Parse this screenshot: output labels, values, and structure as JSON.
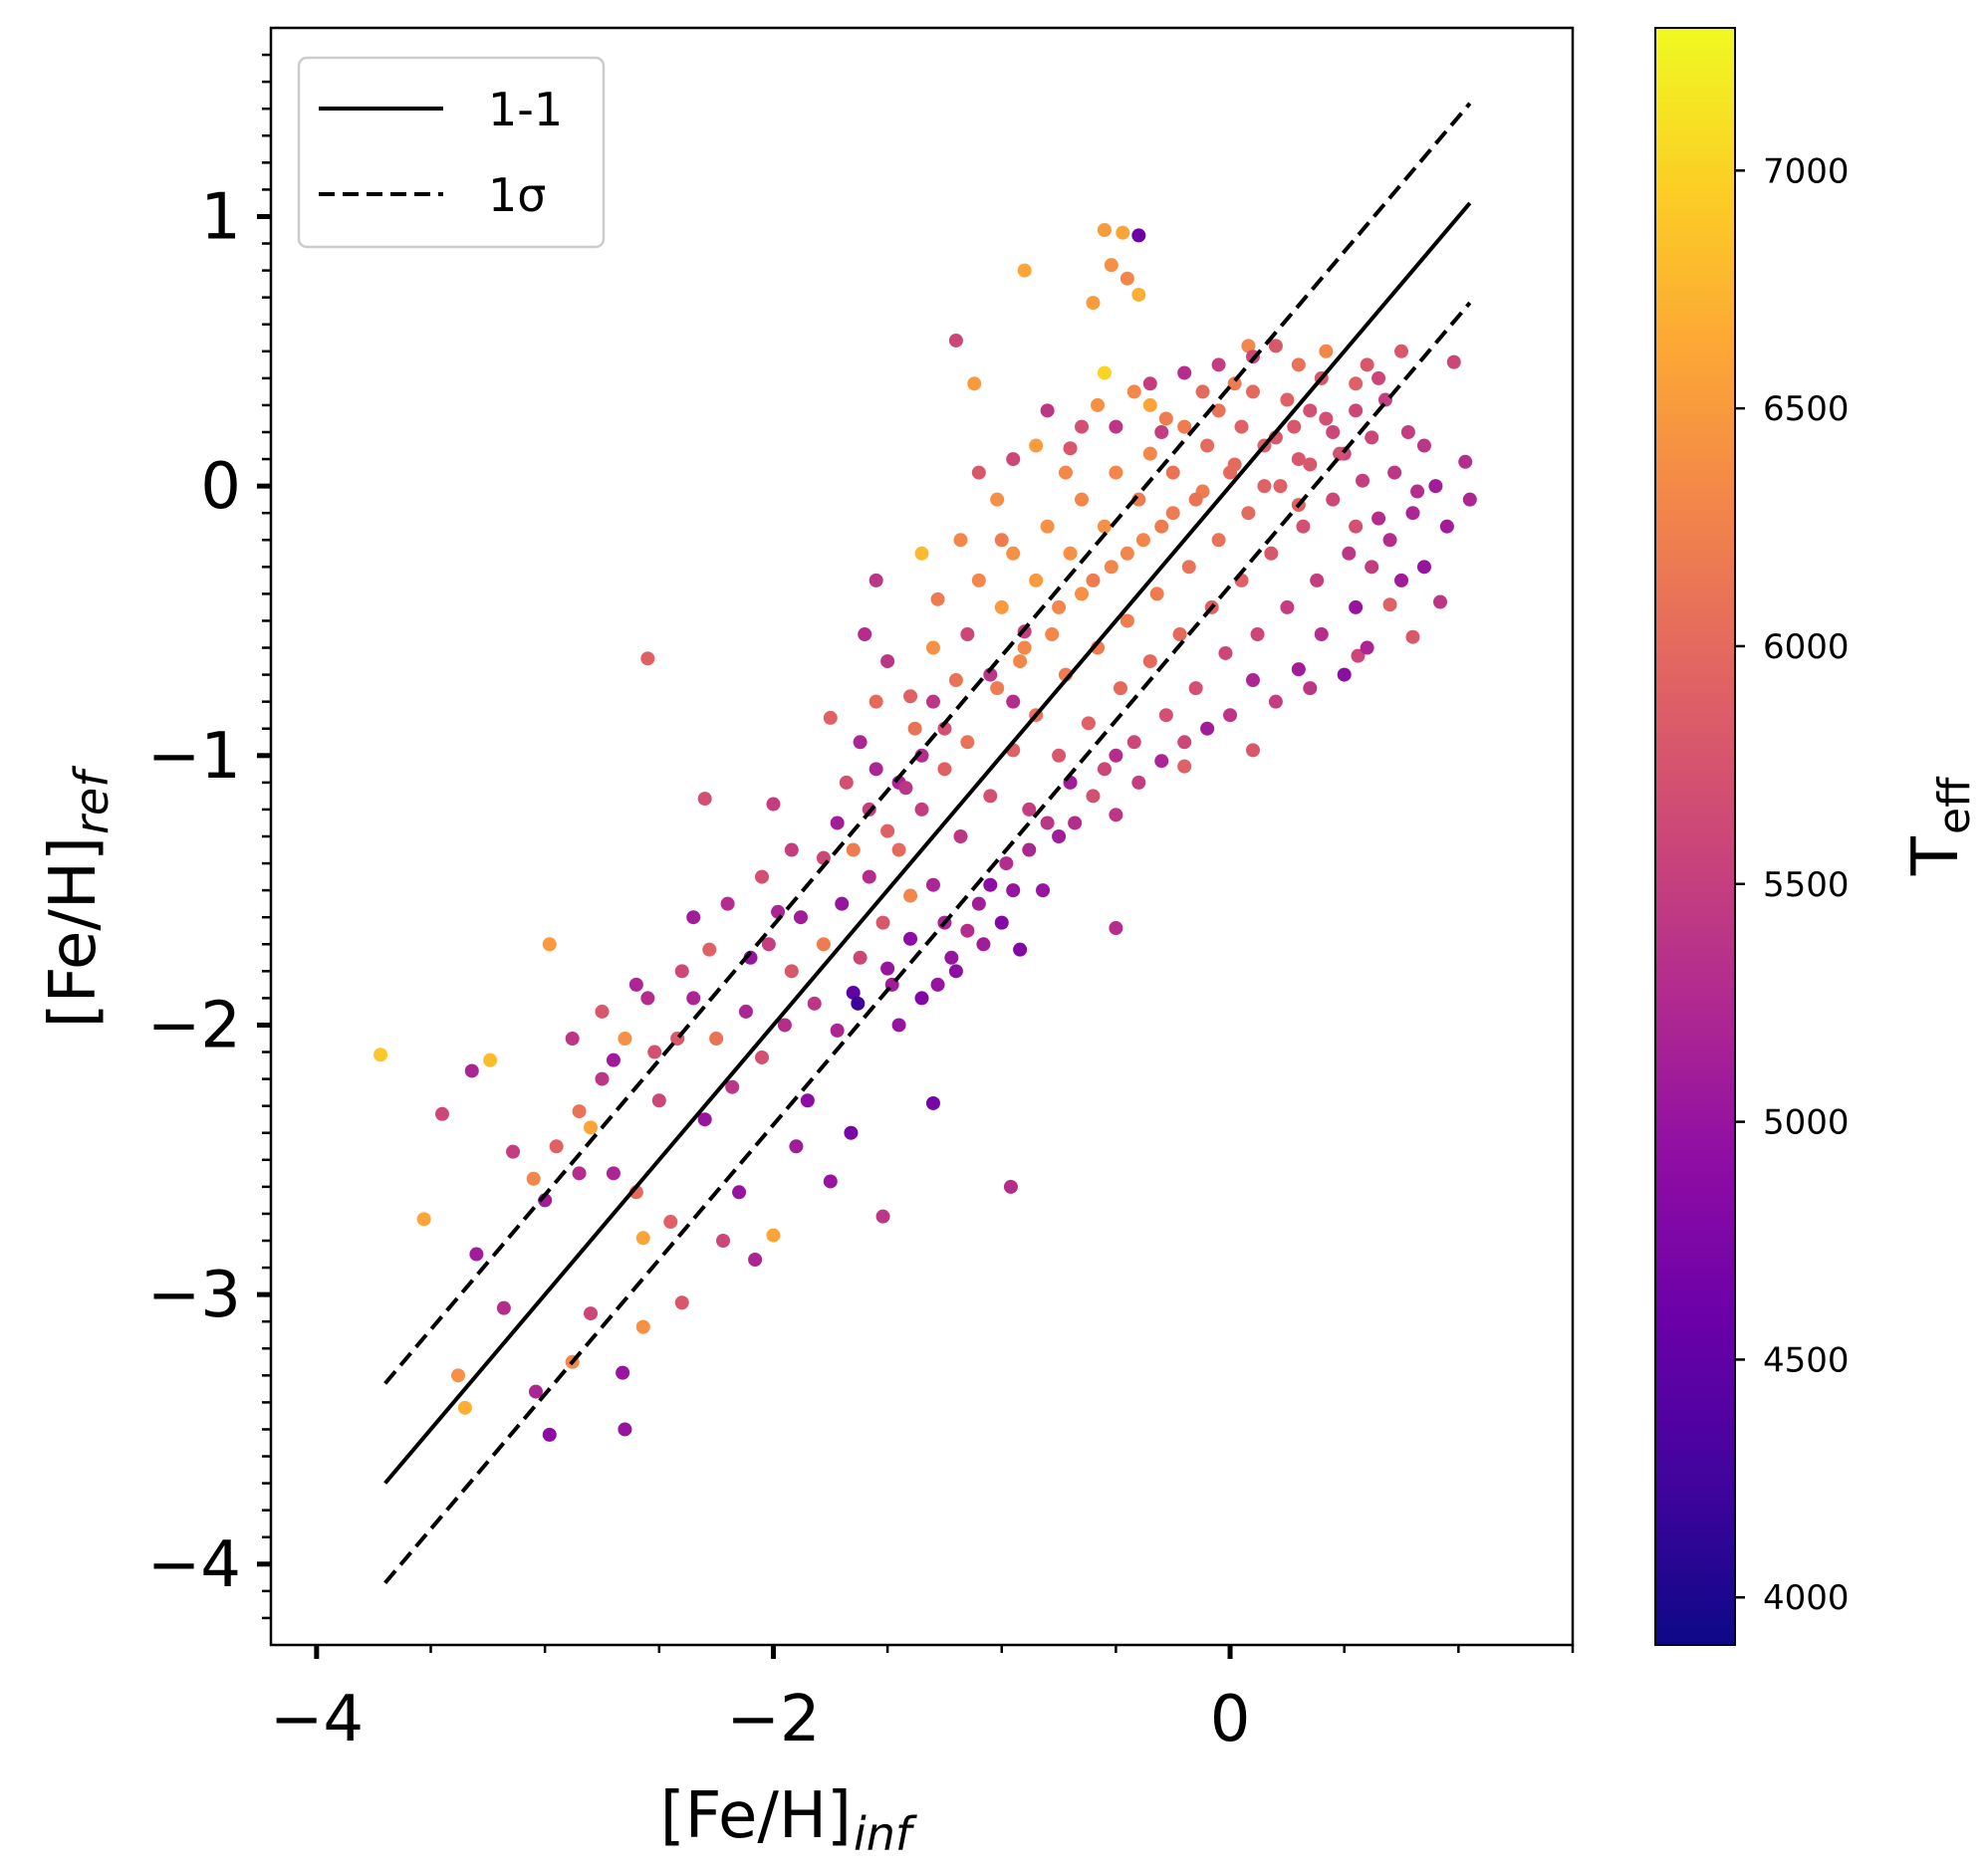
{
  "chart_data": {
    "type": "scatter",
    "xlabel": "[Fe/H]",
    "xlabel_sub": "inf",
    "ylabel": "[Fe/H]",
    "ylabel_sub": "ref",
    "xlim": [
      -4.2,
      1.5
    ],
    "ylim": [
      -4.3,
      1.7
    ],
    "x_ticks": [
      -4,
      -2,
      0
    ],
    "x_tick_labels": [
      "−4",
      "−2",
      "0"
    ],
    "y_ticks": [
      -4,
      -3,
      -2,
      -1,
      0,
      1
    ],
    "y_tick_labels": [
      "−4",
      "−3",
      "−2",
      "−1",
      "0",
      "1"
    ],
    "grid": false,
    "legend": {
      "placement": "top-left",
      "entries": [
        {
          "label": "1-1",
          "style": "solid"
        },
        {
          "label": "1σ",
          "style": "dashed"
        }
      ]
    },
    "lines": [
      {
        "name": "1-1",
        "style": "solid",
        "x": [
          -3.7,
          1.05
        ],
        "y": [
          -3.7,
          1.05
        ]
      },
      {
        "name": "1σ upper",
        "style": "dashed",
        "x": [
          -3.7,
          1.05
        ],
        "y": [
          -3.33,
          1.42
        ]
      },
      {
        "name": "1σ lower",
        "style": "dashed",
        "x": [
          -3.7,
          1.05
        ],
        "y": [
          -4.07,
          0.68
        ]
      }
    ],
    "colorbar": {
      "label": "T",
      "label_sub": "eff",
      "colormap": "plasma",
      "range": [
        3900,
        7300
      ],
      "ticks": [
        4000,
        4500,
        5000,
        5500,
        6000,
        6500,
        7000
      ],
      "tick_labels": [
        "4000",
        "4500",
        "5000",
        "5500",
        "6000",
        "6500",
        "7000"
      ]
    },
    "points": [
      [
        -3.72,
        -2.11,
        6900
      ],
      [
        -3.24,
        -2.13,
        6800
      ],
      [
        -3.53,
        -2.72,
        6600
      ],
      [
        -3.45,
        -2.33,
        5600
      ],
      [
        -3.32,
        -2.17,
        5200
      ],
      [
        -3.14,
        -2.47,
        5500
      ],
      [
        -3.05,
        -2.57,
        6300
      ],
      [
        -2.98,
        -1.7,
        6500
      ],
      [
        -2.85,
        -2.32,
        6100
      ],
      [
        -2.75,
        -1.95,
        5800
      ],
      [
        -3.35,
        -3.42,
        6700
      ],
      [
        -3.38,
        -3.3,
        6400
      ],
      [
        -3.18,
        -3.05,
        5300
      ],
      [
        -3.3,
        -2.85,
        5100
      ],
      [
        -3.04,
        -3.36,
        5200
      ],
      [
        -2.98,
        -3.52,
        4900
      ],
      [
        -2.88,
        -3.25,
        6300
      ],
      [
        -2.8,
        -3.07,
        5600
      ],
      [
        -2.66,
        -3.29,
        5000
      ],
      [
        -2.65,
        -3.5,
        5000
      ],
      [
        -2.57,
        -3.12,
        6400
      ],
      [
        -2.7,
        -2.55,
        5200
      ],
      [
        -2.6,
        -2.62,
        6000
      ],
      [
        -2.57,
        -2.79,
        6600
      ],
      [
        -2.45,
        -2.73,
        5900
      ],
      [
        -2.4,
        -3.03,
        5800
      ],
      [
        -2.22,
        -2.8,
        5600
      ],
      [
        -2.0,
        -2.78,
        6600
      ],
      [
        -2.15,
        -2.62,
        5000
      ],
      [
        -2.08,
        -2.87,
        5200
      ],
      [
        -1.9,
        -2.45,
        5100
      ],
      [
        -1.85,
        -2.28,
        4900
      ],
      [
        -1.75,
        -2.58,
        5000
      ],
      [
        -1.66,
        -2.4,
        4700
      ],
      [
        -1.52,
        -2.71,
        5400
      ],
      [
        -1.3,
        -2.29,
        4700
      ],
      [
        -0.96,
        -2.6,
        5300
      ],
      [
        -2.55,
        -0.64,
        5900
      ],
      [
        -2.3,
        -1.16,
        5700
      ],
      [
        -1.65,
        -1.88,
        4500
      ],
      [
        -1.63,
        -1.92,
        4200
      ],
      [
        -0.9,
        -0.54,
        5500
      ],
      [
        -0.55,
        0.95,
        6500
      ],
      [
        -0.47,
        0.94,
        6600
      ],
      [
        -0.4,
        0.93,
        4600
      ],
      [
        -0.6,
        0.68,
        6500
      ],
      [
        -0.52,
        0.82,
        6400
      ],
      [
        -0.45,
        0.77,
        6300
      ],
      [
        -0.4,
        0.71,
        6700
      ],
      [
        -0.9,
        0.8,
        6600
      ],
      [
        -1.2,
        0.54,
        5600
      ],
      [
        -1.12,
        0.38,
        6500
      ],
      [
        -0.55,
        0.42,
        7000
      ],
      [
        -0.35,
        0.3,
        6600
      ],
      [
        0.08,
        0.52,
        6300
      ],
      [
        0.42,
        0.5,
        6300
      ],
      [
        0.75,
        0.5,
        5800
      ],
      [
        0.98,
        0.46,
        5600
      ],
      [
        1.03,
        0.09,
        5300
      ],
      [
        1.05,
        -0.05,
        5200
      ],
      [
        0.95,
        -0.15,
        5100
      ],
      [
        0.92,
        -0.43,
        5400
      ],
      [
        0.8,
        -0.56,
        5800
      ],
      [
        0.56,
        -0.63,
        5600
      ],
      [
        0.35,
        -0.75,
        5400
      ],
      [
        0.1,
        -0.98,
        5800
      ],
      [
        -0.2,
        -1.04,
        5900
      ],
      [
        -0.5,
        -1.22,
        5400
      ],
      [
        -0.75,
        -1.3,
        5100
      ],
      [
        -0.5,
        -1.64,
        5300
      ],
      [
        -0.92,
        -1.72,
        4800
      ],
      [
        -1.05,
        -1.48,
        4900
      ],
      [
        -1.25,
        -1.62,
        5200
      ],
      [
        -1.5,
        -1.79,
        5000
      ],
      [
        -1.4,
        -1.52,
        6300
      ],
      [
        -1.78,
        -1.38,
        5600
      ],
      [
        -2.0,
        -1.18,
        5500
      ],
      [
        -1.35,
        -0.25,
        6800
      ],
      [
        -1.55,
        -0.35,
        5400
      ],
      [
        -1.6,
        -0.55,
        5300
      ],
      [
        -1.75,
        -0.86,
        5900
      ],
      [
        -1.55,
        -1.05,
        5200
      ],
      [
        -1.3,
        -0.8,
        5400
      ],
      [
        -0.7,
        0.14,
        5800
      ],
      [
        -0.3,
        0.2,
        5500
      ],
      [
        0.5,
        0.12,
        5600
      ],
      [
        0.3,
        -0.07,
        5900
      ],
      [
        0.62,
        -0.3,
        5500
      ],
      [
        0.7,
        -0.44,
        5900
      ],
      [
        0.55,
        -0.15,
        5700
      ],
      [
        -2.88,
        -2.05,
        5400
      ],
      [
        -2.8,
        -2.38,
        6600
      ],
      [
        -2.7,
        -2.13,
        5100
      ],
      [
        -2.55,
        -1.9,
        5300
      ],
      [
        -2.5,
        -2.28,
        5600
      ],
      [
        -2.42,
        -2.05,
        5800
      ],
      [
        -2.35,
        -1.9,
        5200
      ],
      [
        -2.3,
        -2.35,
        5000
      ],
      [
        -2.25,
        -2.05,
        6100
      ],
      [
        -2.18,
        -2.23,
        5400
      ],
      [
        -2.12,
        -1.95,
        5200
      ],
      [
        -2.05,
        -2.12,
        5700
      ],
      [
        -2.02,
        -1.7,
        5500
      ],
      [
        -1.95,
        -2.0,
        5300
      ],
      [
        -1.92,
        -1.8,
        5800
      ],
      [
        -1.88,
        -1.6,
        5100
      ],
      [
        -1.82,
        -1.92,
        5400
      ],
      [
        -1.78,
        -1.7,
        6200
      ],
      [
        -1.72,
        -2.02,
        5200
      ],
      [
        -1.7,
        -1.55,
        5000
      ],
      [
        -1.62,
        -1.75,
        5600
      ],
      [
        -1.58,
        -1.45,
        5300
      ],
      [
        -1.52,
        -1.62,
        5800
      ],
      [
        -1.48,
        -1.85,
        5100
      ],
      [
        -1.45,
        -1.35,
        6000
      ],
      [
        -1.4,
        -1.68,
        4900
      ],
      [
        -1.35,
        -1.2,
        5500
      ],
      [
        -1.3,
        -1.48,
        5200
      ],
      [
        -1.25,
        -1.05,
        5900
      ],
      [
        -1.22,
        -1.75,
        5000
      ],
      [
        -1.18,
        -1.3,
        5400
      ],
      [
        -1.15,
        -0.95,
        6100
      ],
      [
        -1.1,
        -1.55,
        5100
      ],
      [
        -1.05,
        -1.15,
        5700
      ],
      [
        -1.02,
        -0.75,
        6200
      ],
      [
        -0.98,
        -1.4,
        5300
      ],
      [
        -0.95,
        -0.98,
        5900
      ],
      [
        -0.92,
        -0.65,
        6300
      ],
      [
        -0.88,
        -1.2,
        5500
      ],
      [
        -0.85,
        -0.85,
        6100
      ],
      [
        -0.82,
        -1.5,
        5000
      ],
      [
        -0.78,
        -0.55,
        6300
      ],
      [
        -0.75,
        -1.0,
        5800
      ],
      [
        -0.72,
        -0.7,
        6200
      ],
      [
        -0.68,
        -1.25,
        5300
      ],
      [
        -0.65,
        -0.4,
        6400
      ],
      [
        -0.62,
        -0.88,
        5900
      ],
      [
        -0.58,
        -0.6,
        6200
      ],
      [
        -0.55,
        -1.05,
        5600
      ],
      [
        -0.52,
        -0.3,
        6300
      ],
      [
        -0.48,
        -0.75,
        6000
      ],
      [
        -0.45,
        -0.5,
        6200
      ],
      [
        -0.42,
        -0.95,
        5600
      ],
      [
        -0.38,
        -0.2,
        6300
      ],
      [
        -0.35,
        -0.65,
        6000
      ],
      [
        -0.32,
        -0.4,
        6200
      ],
      [
        -0.28,
        -0.85,
        5700
      ],
      [
        -0.25,
        -0.1,
        6200
      ],
      [
        -0.22,
        -0.55,
        6000
      ],
      [
        -0.18,
        -0.3,
        6100
      ],
      [
        -0.15,
        -0.75,
        5700
      ],
      [
        -0.12,
        -0.02,
        6200
      ],
      [
        -0.08,
        -0.45,
        5900
      ],
      [
        -0.05,
        -0.2,
        6100
      ],
      [
        -0.02,
        -0.62,
        5600
      ],
      [
        0.02,
        0.08,
        6000
      ],
      [
        0.05,
        -0.35,
        5900
      ],
      [
        0.08,
        -0.1,
        6000
      ],
      [
        0.12,
        -0.55,
        5600
      ],
      [
        0.15,
        0.15,
        5900
      ],
      [
        0.18,
        -0.25,
        5800
      ],
      [
        0.22,
        0.0,
        5900
      ],
      [
        0.25,
        -0.45,
        5500
      ],
      [
        0.28,
        0.22,
        5800
      ],
      [
        0.32,
        -0.15,
        5700
      ],
      [
        0.35,
        0.08,
        5800
      ],
      [
        0.38,
        -0.35,
        5500
      ],
      [
        0.42,
        0.25,
        5700
      ],
      [
        0.45,
        -0.05,
        5600
      ],
      [
        0.48,
        0.12,
        5700
      ],
      [
        0.52,
        -0.25,
        5400
      ],
      [
        0.55,
        0.28,
        5600
      ],
      [
        0.58,
        0.02,
        5500
      ],
      [
        0.62,
        0.18,
        5600
      ],
      [
        0.65,
        -0.12,
        5300
      ],
      [
        0.68,
        0.32,
        5500
      ],
      [
        0.72,
        0.05,
        5400
      ],
      [
        0.78,
        0.2,
        5500
      ],
      [
        0.82,
        -0.02,
        5300
      ],
      [
        0.85,
        0.15,
        5400
      ],
      [
        -1.0,
        -0.45,
        6500
      ],
      [
        -0.95,
        -0.25,
        6400
      ],
      [
        -0.9,
        -0.6,
        6300
      ],
      [
        -0.85,
        -0.35,
        6500
      ],
      [
        -0.8,
        -0.15,
        6400
      ],
      [
        -0.75,
        -0.45,
        6300
      ],
      [
        -0.7,
        -0.25,
        6400
      ],
      [
        -0.65,
        -0.05,
        6300
      ],
      [
        -0.6,
        -0.35,
        6200
      ],
      [
        -0.55,
        -0.15,
        6400
      ],
      [
        -0.5,
        0.05,
        6300
      ],
      [
        -0.45,
        -0.25,
        6300
      ],
      [
        -0.4,
        -0.05,
        6200
      ],
      [
        -0.35,
        0.12,
        6300
      ],
      [
        -0.3,
        -0.15,
        6200
      ],
      [
        -0.25,
        0.05,
        6100
      ],
      [
        -0.2,
        0.22,
        6200
      ],
      [
        -0.15,
        -0.05,
        6100
      ],
      [
        -0.1,
        0.15,
        6000
      ],
      [
        -0.05,
        0.28,
        6100
      ],
      [
        0.0,
        0.05,
        6000
      ],
      [
        0.05,
        0.22,
        5900
      ],
      [
        0.1,
        0.35,
        6000
      ],
      [
        0.15,
        0.0,
        5900
      ],
      [
        0.2,
        0.18,
        5800
      ],
      [
        0.25,
        0.32,
        5900
      ],
      [
        0.3,
        0.1,
        5800
      ],
      [
        0.35,
        0.28,
        5700
      ],
      [
        0.4,
        0.4,
        5800
      ],
      [
        0.45,
        0.2,
        5600
      ],
      [
        -1.15,
        -0.55,
        5600
      ],
      [
        -1.1,
        -0.35,
        6300
      ],
      [
        -1.05,
        -0.7,
        5400
      ],
      [
        -1.0,
        -0.2,
        6200
      ],
      [
        -0.95,
        -0.8,
        5300
      ],
      [
        -1.2,
        -0.72,
        6100
      ],
      [
        -1.25,
        -0.9,
        5700
      ],
      [
        -1.3,
        -0.6,
        6400
      ],
      [
        -1.35,
        -1.0,
        5300
      ],
      [
        -1.28,
        -0.42,
        6200
      ],
      [
        -1.4,
        -0.78,
        5900
      ],
      [
        -1.45,
        -1.1,
        5200
      ],
      [
        -1.18,
        -0.2,
        6300
      ],
      [
        -1.1,
        0.05,
        5800
      ],
      [
        -1.02,
        -0.05,
        6400
      ],
      [
        -0.95,
        0.1,
        5600
      ],
      [
        -0.85,
        0.15,
        6500
      ],
      [
        -0.8,
        0.28,
        5400
      ],
      [
        -0.72,
        0.05,
        6300
      ],
      [
        -0.65,
        0.22,
        5700
      ],
      [
        -0.58,
        0.3,
        6400
      ],
      [
        -0.5,
        0.22,
        5400
      ],
      [
        -0.42,
        0.35,
        6300
      ],
      [
        -0.35,
        0.38,
        5500
      ],
      [
        -0.28,
        0.25,
        6200
      ],
      [
        -0.2,
        0.42,
        5300
      ],
      [
        -0.12,
        0.35,
        6000
      ],
      [
        -0.05,
        0.45,
        5500
      ],
      [
        0.02,
        0.38,
        6200
      ],
      [
        0.1,
        0.48,
        5600
      ],
      [
        -1.5,
        -0.65,
        5400
      ],
      [
        -1.55,
        -0.8,
        6000
      ],
      [
        -1.62,
        -0.95,
        5200
      ],
      [
        -1.68,
        -1.1,
        5700
      ],
      [
        -1.72,
        -1.25,
        5100
      ],
      [
        -1.65,
        -1.35,
        6200
      ],
      [
        -1.58,
        -1.2,
        5500
      ],
      [
        -1.5,
        -1.28,
        5900
      ],
      [
        -1.42,
        -1.12,
        5400
      ],
      [
        -1.38,
        -0.9,
        6100
      ],
      [
        0.55,
        -0.45,
        5000
      ],
      [
        0.6,
        -0.6,
        5200
      ],
      [
        0.5,
        -0.7,
        4900
      ],
      [
        0.4,
        -0.55,
        5300
      ],
      [
        0.3,
        -0.68,
        5100
      ],
      [
        0.2,
        -0.8,
        5500
      ],
      [
        0.1,
        -0.72,
        5200
      ],
      [
        0.0,
        -0.85,
        5400
      ],
      [
        -0.1,
        -0.9,
        5100
      ],
      [
        -0.2,
        -0.95,
        5600
      ],
      [
        -0.3,
        -1.02,
        5200
      ],
      [
        -0.4,
        -1.1,
        5500
      ],
      [
        -0.5,
        -1.0,
        5300
      ],
      [
        -0.6,
        -1.15,
        5700
      ],
      [
        -0.7,
        -1.1,
        5100
      ],
      [
        -0.8,
        -1.25,
        5400
      ],
      [
        -0.88,
        -1.35,
        5200
      ],
      [
        -0.95,
        -1.5,
        5000
      ],
      [
        -1.0,
        -1.62,
        4800
      ],
      [
        -1.08,
        -1.7,
        5100
      ],
      [
        -1.15,
        -1.65,
        5300
      ],
      [
        -1.2,
        -1.8,
        4900
      ],
      [
        -1.28,
        -1.85,
        5000
      ],
      [
        -1.35,
        -1.9,
        4800
      ],
      [
        -1.45,
        -2.0,
        5000
      ],
      [
        0.7,
        -0.2,
        5300
      ],
      [
        0.75,
        -0.35,
        5100
      ],
      [
        0.8,
        -0.1,
        5200
      ],
      [
        0.85,
        -0.3,
        5000
      ],
      [
        0.9,
        0.0,
        5100
      ],
      [
        0.65,
        0.4,
        5600
      ],
      [
        0.6,
        0.45,
        5800
      ],
      [
        0.55,
        0.38,
        5900
      ],
      [
        0.3,
        0.45,
        6100
      ],
      [
        0.2,
        0.52,
        5800
      ],
      [
        -2.2,
        -1.55,
        5300
      ],
      [
        -2.1,
        -1.75,
        5000
      ],
      [
        -2.05,
        -1.45,
        5700
      ],
      [
        -1.98,
        -1.58,
        5200
      ],
      [
        -1.92,
        -1.35,
        5500
      ],
      [
        -2.4,
        -1.8,
        5600
      ],
      [
        -2.35,
        -1.6,
        5100
      ],
      [
        -2.28,
        -1.72,
        5900
      ],
      [
        -2.6,
        -1.85,
        5200
      ],
      [
        -2.52,
        -2.1,
        5700
      ],
      [
        -2.65,
        -2.05,
        6400
      ],
      [
        -2.75,
        -2.2,
        5400
      ],
      [
        -2.85,
        -2.55,
        5300
      ],
      [
        -2.95,
        -2.45,
        5900
      ],
      [
        -3.0,
        -2.65,
        5100
      ]
    ]
  }
}
